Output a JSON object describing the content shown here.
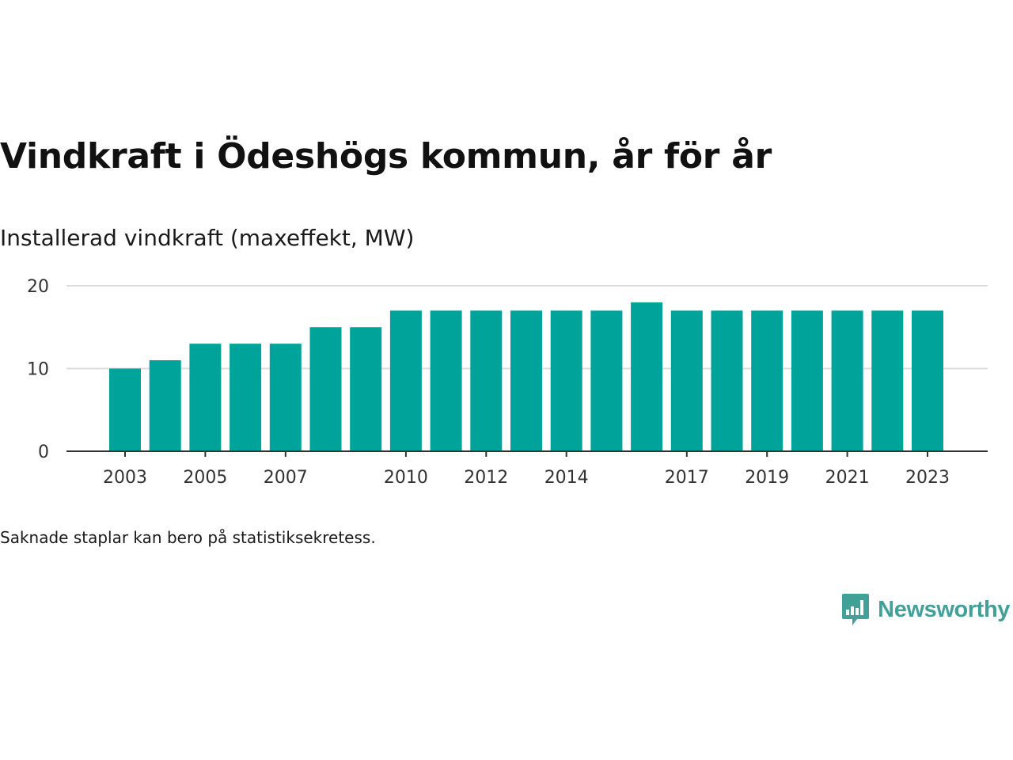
{
  "header": {
    "title": "Vindkraft i Ödeshögs kommun, år för år",
    "subtitle": "Installerad vindkraft (maxeffekt, MW)"
  },
  "footer": {
    "note": "Saknade staplar kan bero på statistiksekretess.",
    "brand": "Newsworthy"
  },
  "colors": {
    "bar": "#00a39a",
    "grid": "#dddddd",
    "axis": "#333333",
    "brand": "#41a199"
  },
  "chart_data": {
    "type": "bar",
    "title": "Vindkraft i Ödeshögs kommun, år för år",
    "subtitle": "Installerad vindkraft (maxeffekt, MW)",
    "xlabel": "",
    "ylabel": "",
    "ylim": [
      0,
      20
    ],
    "yticks": [
      0,
      10,
      20
    ],
    "grid": true,
    "categories": [
      2003,
      2004,
      2005,
      2006,
      2007,
      2008,
      2009,
      2010,
      2011,
      2012,
      2013,
      2014,
      2015,
      2016,
      2017,
      2018,
      2019,
      2020,
      2021,
      2022,
      2023
    ],
    "values": [
      10,
      11,
      13,
      13,
      13,
      15,
      15,
      17,
      17,
      17,
      17,
      17,
      17,
      18,
      17,
      17,
      17,
      17,
      17,
      17,
      17
    ],
    "xtick_labels": [
      2003,
      2005,
      2007,
      2010,
      2012,
      2014,
      2017,
      2019,
      2021,
      2023
    ]
  }
}
